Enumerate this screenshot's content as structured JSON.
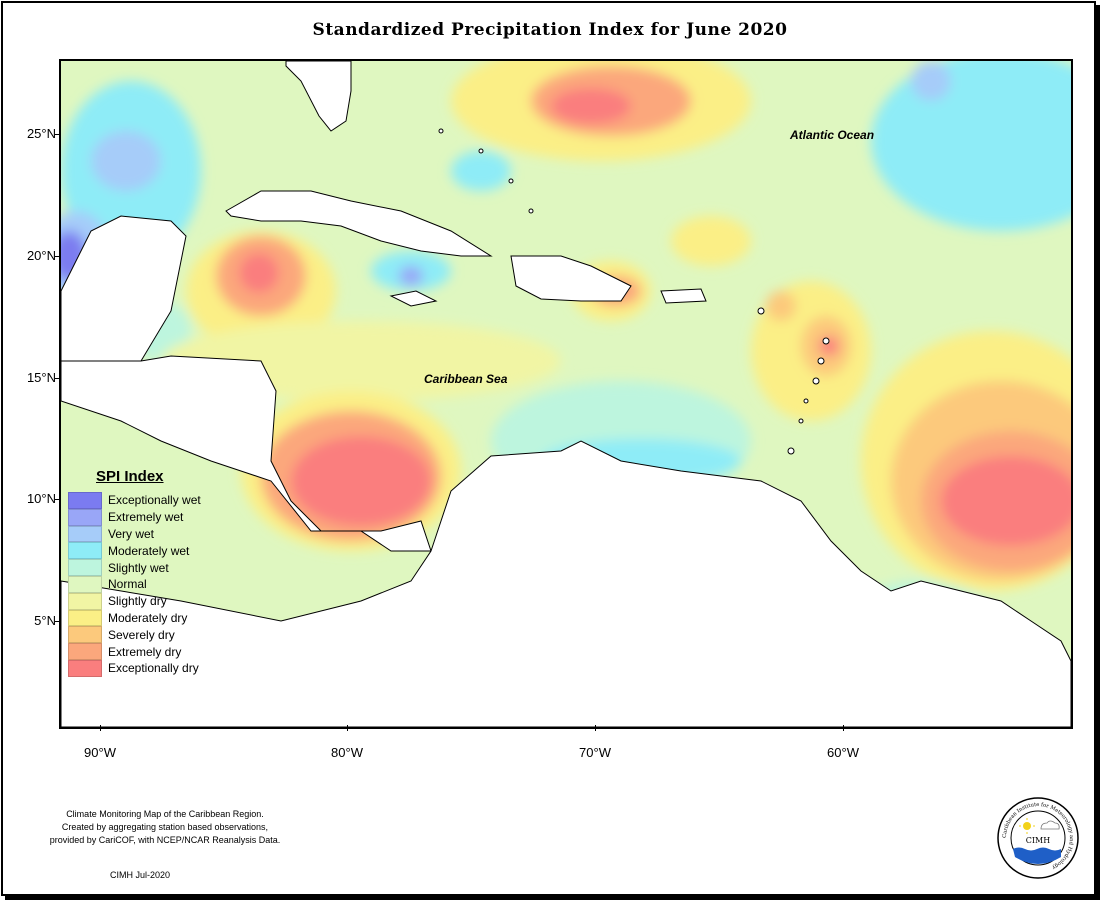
{
  "title": "Standardized Precipitation Index for June 2020",
  "axes": {
    "lat_labels": [
      "25°N",
      "20°N",
      "15°N",
      "10°N",
      "5°N"
    ],
    "lon_labels": [
      "90°W",
      "80°W",
      "70°W",
      "60°W"
    ]
  },
  "map_labels": {
    "atlantic": "Atlantic Ocean",
    "caribbean": "Caribbean Sea"
  },
  "legend": {
    "title": "SPI Index",
    "items": [
      {
        "label": "Exceptionally wet",
        "color": "#7b7bf0"
      },
      {
        "label": "Extremely wet",
        "color": "#99a6f7"
      },
      {
        "label": "Very wet",
        "color": "#a6ccf9"
      },
      {
        "label": "Moderately wet",
        "color": "#8eecf7"
      },
      {
        "label": "Slightly wet",
        "color": "#bdf5de"
      },
      {
        "label": "Normal",
        "color": "#dff7c0"
      },
      {
        "label": "Slightly dry",
        "color": "#f1f5a4"
      },
      {
        "label": "Moderately dry",
        "color": "#fbef86"
      },
      {
        "label": "Severely dry",
        "color": "#fcc97c"
      },
      {
        "label": "Extremely dry",
        "color": "#fba77c"
      },
      {
        "label": "Exceptionally dry",
        "color": "#fa7e7e"
      }
    ]
  },
  "footnote": {
    "line1": "Climate Monitoring Map of the Caribbean Region.",
    "line2": "Created by aggregating station based observations,",
    "line3": "provided by CariCOF, with NCEP/NCAR Reanalysis Data."
  },
  "credit": "CIMH Jul-2020",
  "logo": {
    "text": "CIMH",
    "ring_text": "Caribbean Institute for Meteorology and Hydrology",
    "sun_color": "#f2d21b",
    "water_color": "#1f5fc7"
  }
}
